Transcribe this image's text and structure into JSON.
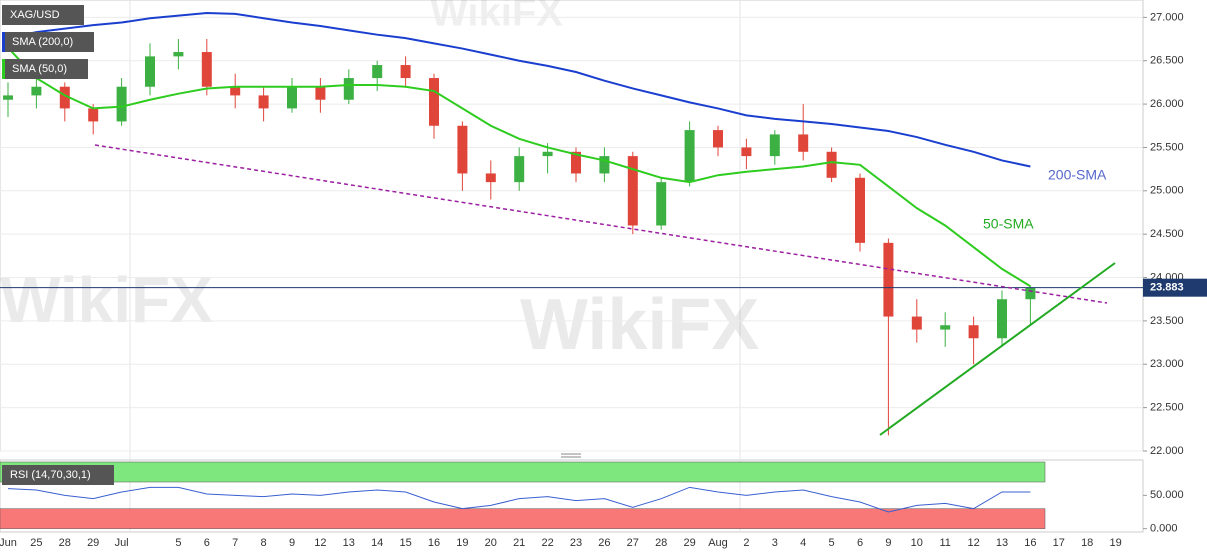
{
  "watermark": "WikiFX",
  "chart_data": [
    {
      "type": "candlestick",
      "symbol": "XAG/USD",
      "categories": [
        "Jun",
        "25",
        "28",
        "29",
        "Jul",
        null,
        "5",
        "6",
        "7",
        "8",
        "9",
        "12",
        "13",
        "14",
        "15",
        "16",
        "19",
        "20",
        "21",
        "22",
        "23",
        "26",
        "27",
        "28",
        "29",
        "Aug",
        "2",
        "3",
        "4",
        "5",
        "6",
        "9",
        "10",
        "11",
        "12",
        "13",
        "16",
        "17",
        "18",
        "19"
      ],
      "open": [
        26.05,
        26.1,
        26.2,
        25.95,
        25.8,
        26.2,
        26.55,
        26.6,
        26.2,
        26.1,
        25.95,
        26.2,
        26.05,
        26.3,
        26.45,
        26.3,
        25.75,
        25.2,
        25.1,
        25.4,
        25.45,
        25.2,
        25.4,
        24.6,
        25.1,
        25.7,
        25.5,
        25.4,
        25.65,
        25.45,
        25.15,
        24.4,
        23.55,
        23.4,
        23.45,
        23.3,
        23.75,
        null,
        null,
        null
      ],
      "high": [
        26.25,
        26.3,
        26.25,
        26.0,
        26.3,
        26.7,
        26.75,
        26.75,
        26.35,
        26.2,
        26.3,
        26.3,
        26.4,
        26.5,
        26.55,
        26.35,
        25.8,
        25.35,
        25.5,
        25.55,
        25.5,
        25.5,
        25.45,
        25.15,
        25.8,
        25.75,
        25.6,
        25.7,
        26.0,
        25.5,
        25.2,
        24.45,
        23.75,
        23.6,
        23.55,
        23.85,
        23.9,
        null,
        null,
        null
      ],
      "low": [
        25.85,
        25.95,
        25.8,
        25.65,
        25.75,
        26.1,
        26.4,
        26.1,
        25.95,
        25.8,
        25.9,
        25.9,
        26.0,
        26.15,
        26.2,
        25.6,
        25.0,
        24.9,
        25.0,
        25.2,
        25.1,
        25.1,
        24.5,
        24.55,
        25.05,
        25.4,
        25.25,
        25.3,
        25.35,
        25.1,
        24.3,
        22.18,
        23.25,
        23.2,
        23.0,
        23.2,
        23.45,
        null,
        null,
        null
      ],
      "close": [
        26.1,
        26.2,
        25.95,
        25.8,
        26.2,
        26.55,
        26.6,
        26.2,
        26.1,
        25.95,
        26.2,
        26.05,
        26.3,
        26.45,
        26.3,
        25.75,
        25.2,
        25.1,
        25.4,
        25.45,
        25.2,
        25.4,
        24.6,
        25.1,
        25.7,
        25.5,
        25.4,
        25.65,
        25.45,
        25.15,
        24.4,
        23.55,
        23.4,
        23.45,
        23.3,
        23.75,
        23.88,
        null,
        null,
        null
      ],
      "up_color": "#3cb043",
      "down_color": "#e0453a",
      "series": [
        {
          "name": "SMA (200,0)",
          "color": "#1a3fcf",
          "values": [
            26.76,
            26.83,
            26.87,
            26.91,
            26.94,
            26.99,
            27.02,
            27.05,
            27.04,
            26.99,
            26.94,
            26.9,
            26.85,
            26.8,
            26.76,
            26.7,
            26.64,
            26.57,
            26.5,
            26.44,
            26.37,
            26.27,
            26.18,
            26.1,
            26.02,
            25.95,
            25.87,
            25.83,
            25.8,
            25.77,
            25.73,
            25.69,
            25.62,
            25.53,
            25.45,
            25.35,
            25.28,
            null,
            null,
            null
          ]
        },
        {
          "name": "SMA (50,0)",
          "color": "#2ecc1f",
          "values": [
            26.65,
            26.3,
            26.1,
            25.95,
            25.97,
            26.05,
            26.12,
            26.18,
            26.2,
            26.2,
            26.2,
            26.2,
            26.22,
            26.22,
            26.2,
            26.15,
            25.95,
            25.75,
            25.6,
            25.5,
            25.42,
            25.35,
            25.25,
            25.15,
            25.1,
            25.18,
            25.22,
            25.25,
            25.28,
            25.33,
            25.3,
            25.05,
            24.8,
            24.6,
            24.35,
            24.1,
            23.9,
            null,
            null,
            null
          ]
        }
      ],
      "annotations": [
        "200-SMA",
        "50-SMA"
      ],
      "last_price": 23.883,
      "ylim": [
        22,
        27.2
      ],
      "yticks": [
        {
          "value": 27,
          "label": "27.000"
        },
        {
          "value": 26.5,
          "label": "26.500"
        },
        {
          "value": 26,
          "label": "26.000"
        },
        {
          "value": 25.5,
          "label": "25.500"
        },
        {
          "value": 25,
          "label": "25.000"
        },
        {
          "value": 24.5,
          "label": "24.500"
        },
        {
          "value": 24,
          "label": "24.000"
        },
        {
          "value": 23.5,
          "label": "23.500"
        },
        {
          "value": 23,
          "label": "23.000"
        },
        {
          "value": 22.5,
          "label": "22.500"
        },
        {
          "value": 22,
          "label": "22.000"
        }
      ],
      "grid": true
    },
    {
      "type": "line",
      "title": "RSI (14,70,30,1)",
      "color": "#3a5fd0",
      "values": [
        60,
        58,
        50,
        45,
        55,
        62,
        62,
        52,
        50,
        48,
        52,
        50,
        55,
        58,
        55,
        40,
        30,
        35,
        45,
        48,
        42,
        45,
        32,
        45,
        62,
        55,
        50,
        55,
        58,
        48,
        40,
        25,
        35,
        38,
        30,
        55,
        55,
        null,
        null,
        null
      ],
      "bands": [
        {
          "from": 70,
          "to": 100,
          "color": "#7ee87e"
        },
        {
          "from": 0,
          "to": 30,
          "color": "#f87878"
        }
      ],
      "ylim": [
        -5,
        103
      ],
      "yticks": [
        {
          "value": 50,
          "label": "50.000"
        },
        {
          "value": 0,
          "label": "0.000"
        }
      ]
    }
  ]
}
